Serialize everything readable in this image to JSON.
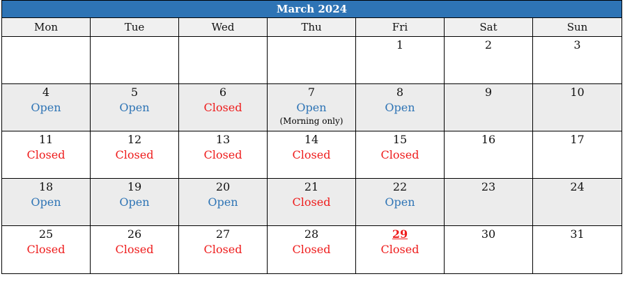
{
  "title": "March 2024",
  "days": [
    "Mon",
    "Tue",
    "Wed",
    "Thu",
    "Fri",
    "Sat",
    "Sun"
  ],
  "colors": {
    "header": "#2e74b5",
    "open": "#2e74b5",
    "closed": "#ee1c1c"
  },
  "weeks": [
    [
      {
        "d": "",
        "s": ""
      },
      {
        "d": "",
        "s": ""
      },
      {
        "d": "",
        "s": ""
      },
      {
        "d": "",
        "s": ""
      },
      {
        "d": "1",
        "s": ""
      },
      {
        "d": "2",
        "s": ""
      },
      {
        "d": "3",
        "s": ""
      }
    ],
    [
      {
        "d": "4",
        "s": "Open"
      },
      {
        "d": "5",
        "s": "Open"
      },
      {
        "d": "6",
        "s": "Closed"
      },
      {
        "d": "7",
        "s": "Open",
        "n": "(Morning only)"
      },
      {
        "d": "8",
        "s": "Open"
      },
      {
        "d": "9",
        "s": ""
      },
      {
        "d": "10",
        "s": ""
      }
    ],
    [
      {
        "d": "11",
        "s": "Closed"
      },
      {
        "d": "12",
        "s": "Closed"
      },
      {
        "d": "13",
        "s": "Closed"
      },
      {
        "d": "14",
        "s": "Closed"
      },
      {
        "d": "15",
        "s": "Closed"
      },
      {
        "d": "16",
        "s": ""
      },
      {
        "d": "17",
        "s": ""
      }
    ],
    [
      {
        "d": "18",
        "s": "Open"
      },
      {
        "d": "19",
        "s": "Open"
      },
      {
        "d": "20",
        "s": "Open"
      },
      {
        "d": "21",
        "s": "Closed"
      },
      {
        "d": "22",
        "s": "Open"
      },
      {
        "d": "23",
        "s": ""
      },
      {
        "d": "24",
        "s": ""
      }
    ],
    [
      {
        "d": "25",
        "s": "Closed"
      },
      {
        "d": "26",
        "s": "Closed"
      },
      {
        "d": "27",
        "s": "Closed"
      },
      {
        "d": "28",
        "s": "Closed"
      },
      {
        "d": "29",
        "s": "Closed",
        "today": true
      },
      {
        "d": "30",
        "s": ""
      },
      {
        "d": "31",
        "s": ""
      }
    ]
  ]
}
